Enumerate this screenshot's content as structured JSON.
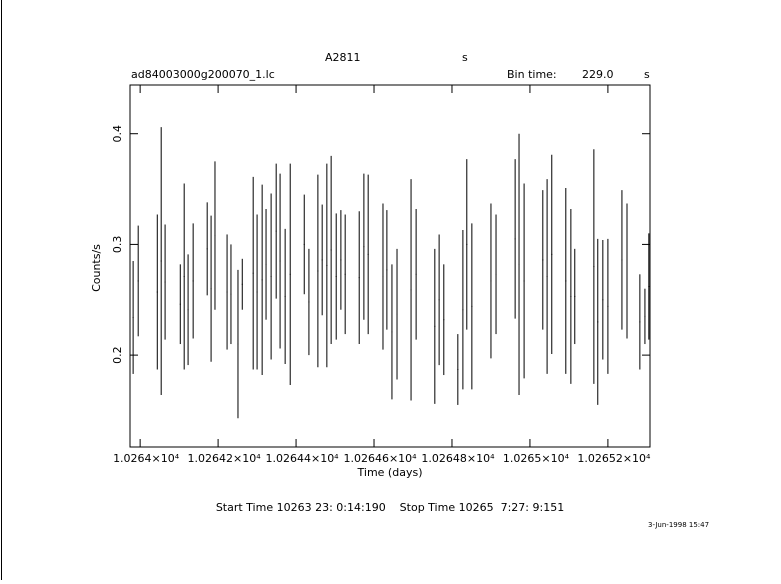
{
  "chart_data": {
    "type": "errorbar",
    "title": "A2811",
    "title_unit": "s",
    "file_name": "ad84003000g200070_1.lc",
    "bin_time_label": "Bin time:",
    "bin_time": "229.0",
    "bin_time_unit": "s",
    "x_label": "Time (days)",
    "y_label": "Counts/s",
    "time_range": "Start Time 10263 23: 0:14:190    Stop Time 10265  7:27: 9:151",
    "date_stamp": "3-Jun-1998 15:47",
    "xlim": [
      10263.974,
      10265.308
    ],
    "xticks": [
      {
        "value": 10264,
        "label": "1.0264×10⁴"
      },
      {
        "value": 10264.2,
        "label": "1.02642×10⁴"
      },
      {
        "value": 10264.4,
        "label": "1.02644×10⁴"
      },
      {
        "value": 10264.6,
        "label": "1.02646×10⁴"
      },
      {
        "value": 10264.8,
        "label": "1.02648×10⁴"
      },
      {
        "value": 10265,
        "label": "1.0265×10⁴"
      },
      {
        "value": 10265.2,
        "label": "1.02652×10⁴"
      }
    ],
    "ylim": [
      0.117,
      0.444
    ],
    "yticks": [
      0.2,
      0.3,
      0.4
    ],
    "series": [
      {
        "color": "#000000",
        "x": [
          10263.982,
          10263.995,
          10264.044,
          10264.054,
          10264.064,
          10264.103,
          10264.113,
          10264.123,
          10264.136,
          10264.172,
          10264.182,
          10264.192,
          10264.223,
          10264.233,
          10264.251,
          10264.262,
          10264.29,
          10264.3,
          10264.313,
          10264.323,
          10264.336,
          10264.349,
          10264.359,
          10264.372,
          10264.385,
          10264.421,
          10264.433,
          10264.456,
          10264.467,
          10264.479,
          10264.49,
          10264.503,
          10264.515,
          10264.526,
          10264.562,
          10264.574,
          10264.585,
          10264.623,
          10264.633,
          10264.646,
          10264.659,
          10264.695,
          10264.708,
          10264.756,
          10264.767,
          10264.779,
          10264.815,
          10264.828,
          10264.838,
          10264.851,
          10264.9,
          10264.913,
          10264.962,
          10264.972,
          10264.985,
          10265.033,
          10265.044,
          10265.056,
          10265.092,
          10265.105,
          10265.115,
          10265.164,
          10265.174,
          10265.187,
          10265.2,
          10265.236,
          10265.249,
          10265.282,
          10265.295,
          10265.305
        ],
        "values": [
          0.234,
          0.267,
          0.257,
          0.285,
          0.266,
          0.246,
          0.271,
          0.241,
          0.267,
          0.296,
          0.26,
          0.308,
          0.257,
          0.255,
          0.21,
          0.264,
          0.274,
          0.257,
          0.268,
          0.282,
          0.271,
          0.312,
          0.285,
          0.253,
          0.273,
          0.3,
          0.248,
          0.276,
          0.286,
          0.281,
          0.295,
          0.271,
          0.286,
          0.273,
          0.27,
          0.298,
          0.291,
          0.271,
          0.277,
          0.221,
          0.237,
          0.259,
          0.273,
          0.226,
          0.25,
          0.232,
          0.187,
          0.241,
          0.3,
          0.244,
          0.267,
          0.273,
          0.305,
          0.282,
          0.267,
          0.286,
          0.271,
          0.291,
          0.267,
          0.253,
          0.253,
          0.28,
          0.23,
          0.25,
          0.244,
          0.286,
          0.276,
          0.23,
          0.235,
          0.262
        ],
        "errors": [
          0.051,
          0.05,
          0.07,
          0.121,
          0.052,
          0.036,
          0.084,
          0.05,
          0.052,
          0.042,
          0.066,
          0.067,
          0.052,
          0.045,
          0.067,
          0.023,
          0.087,
          0.07,
          0.086,
          0.05,
          0.075,
          0.061,
          0.079,
          0.061,
          0.1,
          0.045,
          0.048,
          0.087,
          0.05,
          0.092,
          0.085,
          0.057,
          0.045,
          0.054,
          0.06,
          0.066,
          0.072,
          0.066,
          0.054,
          0.061,
          0.059,
          0.1,
          0.059,
          0.07,
          0.059,
          0.05,
          0.032,
          0.072,
          0.077,
          0.075,
          0.07,
          0.054,
          0.072,
          0.118,
          0.088,
          0.063,
          0.088,
          0.09,
          0.084,
          0.079,
          0.043,
          0.106,
          0.075,
          0.054,
          0.061,
          0.063,
          0.061,
          0.043,
          0.025,
          0.048
        ]
      }
    ]
  }
}
